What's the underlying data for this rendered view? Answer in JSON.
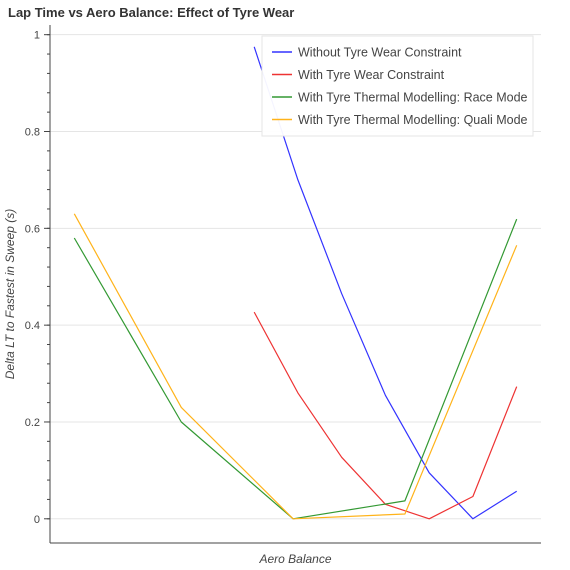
{
  "chart_data": {
    "type": "line",
    "title": "Lap Time vs Aero Balance: Effect of Tyre Wear",
    "xlabel": "Aero Balance",
    "ylabel": "Delta LT to Fastest in Sweep (s)",
    "ylim": [
      -0.05,
      1.02
    ],
    "xlim": [
      0,
      10.1
    ],
    "yticks": [
      0,
      0.2,
      0.4,
      0.6,
      0.8,
      1
    ],
    "ytick_labels": [
      "0",
      "0.2",
      "0.4",
      "0.6",
      "0.8",
      "1"
    ],
    "grid": true,
    "legend_position": "top-right",
    "series": [
      {
        "name": "Without Tyre Wear Constraint",
        "color": "#3333ff",
        "x": [
          4.2,
          5.1,
          6.0,
          6.9,
          7.8,
          8.7,
          9.6
        ],
        "y": [
          0.975,
          0.7,
          0.465,
          0.255,
          0.095,
          0.0,
          0.057
        ]
      },
      {
        "name": "With Tyre Wear Constraint",
        "color": "#ee3333",
        "x": [
          4.2,
          5.1,
          6.0,
          6.9,
          7.8,
          8.7,
          9.6
        ],
        "y": [
          0.427,
          0.26,
          0.127,
          0.03,
          0.0,
          0.046,
          0.273
        ]
      },
      {
        "name": "With Tyre Thermal Modelling: Race Mode",
        "color": "#339933",
        "x": [
          0.5,
          2.7,
          5.0,
          7.3,
          9.6
        ],
        "y": [
          0.58,
          0.2,
          0.0,
          0.037,
          0.619
        ]
      },
      {
        "name": "With Tyre Thermal Modelling: Quali Mode",
        "color": "#ffb31a",
        "x": [
          0.5,
          2.7,
          5.0,
          7.3,
          9.6
        ],
        "y": [
          0.63,
          0.23,
          0.0,
          0.01,
          0.565
        ]
      }
    ]
  }
}
